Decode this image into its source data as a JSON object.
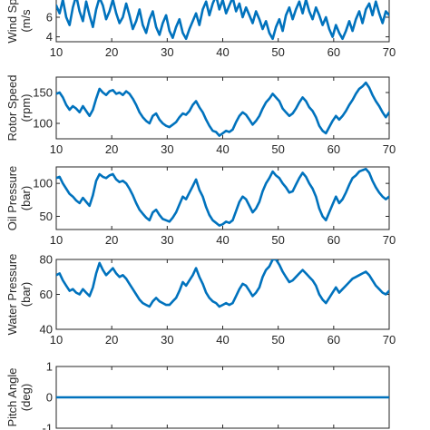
{
  "chart_data": [
    {
      "type": "line",
      "ylabel": "Wind Speed (m/s)",
      "ylabel_lines": [
        "Wind Sp",
        "(m/s"
      ],
      "xlim": [
        10,
        70
      ],
      "ylim": [
        3.5,
        8.5
      ],
      "xticks": [
        10,
        20,
        30,
        40,
        50,
        60,
        70
      ],
      "yticks": [
        4,
        6
      ],
      "series": [
        {
          "color": "#0072BD",
          "x": [
            10.0,
            10.6,
            11.2,
            11.8,
            12.4,
            13.0,
            13.6,
            14.2,
            14.8,
            15.4,
            16.0,
            16.6,
            17.2,
            17.8,
            18.4,
            19.0,
            19.6,
            20.2,
            20.8,
            21.4,
            22.0,
            22.6,
            23.2,
            23.8,
            24.4,
            25.0,
            25.6,
            26.2,
            26.8,
            27.4,
            28.0,
            28.6,
            29.2,
            29.8,
            30.4,
            31.0,
            31.6,
            32.2,
            32.8,
            33.4,
            34.0,
            34.6,
            35.2,
            35.8,
            36.4,
            37.0,
            37.6,
            38.2,
            38.8,
            39.4,
            40.0,
            40.6,
            41.2,
            41.8,
            42.4,
            43.0,
            43.6,
            44.2,
            44.8,
            45.4,
            46.0,
            46.6,
            47.2,
            47.8,
            48.4,
            49.0,
            49.6,
            50.2,
            50.8,
            51.4,
            52.0,
            52.6,
            53.2,
            53.8,
            54.4,
            55.0,
            55.6,
            56.2,
            56.8,
            57.4,
            58.0,
            58.6,
            59.2,
            59.8,
            60.4,
            61.0,
            61.6,
            62.2,
            62.8,
            63.4,
            64.0,
            64.6,
            65.2,
            65.8,
            66.4,
            67.0,
            67.6,
            68.2,
            68.8,
            69.4,
            70.0
          ],
          "y": [
            7.2,
            6.4,
            7.8,
            6.0,
            5.2,
            7.0,
            8.2,
            6.6,
            5.6,
            7.6,
            6.2,
            5.0,
            6.8,
            8.0,
            7.2,
            5.8,
            6.6,
            7.8,
            6.4,
            5.4,
            6.0,
            7.4,
            6.2,
            4.8,
            5.6,
            6.8,
            5.2,
            4.4,
            5.8,
            6.6,
            5.0,
            4.2,
            5.4,
            6.2,
            4.6,
            3.9,
            5.0,
            5.8,
            4.4,
            3.8,
            4.8,
            5.6,
            6.4,
            5.2,
            6.8,
            7.6,
            6.2,
            7.4,
            8.2,
            6.8,
            7.8,
            6.4,
            7.2,
            8.0,
            6.6,
            7.4,
            6.0,
            7.0,
            6.2,
            5.4,
            6.6,
            5.8,
            4.8,
            5.6,
            4.4,
            3.8,
            5.0,
            5.8,
            4.6,
            6.2,
            7.0,
            5.8,
            6.8,
            7.6,
            6.4,
            7.8,
            6.6,
            5.8,
            7.0,
            6.2,
            5.2,
            6.0,
            4.8,
            4.0,
            5.2,
            4.4,
            3.8,
            4.6,
            5.6,
            4.6,
            5.8,
            6.6,
            5.4,
            6.8,
            7.4,
            6.2,
            7.6,
            6.4,
            5.4,
            6.6,
            6.2
          ]
        }
      ]
    },
    {
      "type": "line",
      "ylabel": "Rotor Speed (rpm)",
      "ylabel_lines": [
        "Rotor Speed",
        "(rpm)"
      ],
      "xlim": [
        10,
        70
      ],
      "ylim": [
        75,
        175
      ],
      "xticks": [
        10,
        20,
        30,
        40,
        50,
        60,
        70
      ],
      "yticks": [
        100,
        150
      ],
      "series": [
        {
          "color": "#0072BD",
          "x": [
            10.0,
            10.6,
            11.2,
            11.8,
            12.4,
            13.0,
            13.6,
            14.2,
            14.8,
            15.4,
            16.0,
            16.6,
            17.2,
            17.8,
            18.4,
            19.0,
            19.6,
            20.2,
            20.8,
            21.4,
            22.0,
            22.6,
            23.2,
            23.8,
            24.4,
            25.0,
            25.6,
            26.2,
            26.8,
            27.4,
            28.0,
            28.6,
            29.2,
            29.8,
            30.4,
            31.0,
            31.6,
            32.2,
            32.8,
            33.4,
            34.0,
            34.6,
            35.2,
            35.8,
            36.4,
            37.0,
            37.6,
            38.2,
            38.8,
            39.4,
            40.0,
            40.6,
            41.2,
            41.8,
            42.4,
            43.0,
            43.6,
            44.2,
            44.8,
            45.4,
            46.0,
            46.6,
            47.2,
            47.8,
            48.4,
            49.0,
            49.6,
            50.2,
            50.8,
            51.4,
            52.0,
            52.6,
            53.2,
            53.8,
            54.4,
            55.0,
            55.6,
            56.2,
            56.8,
            57.4,
            58.0,
            58.6,
            59.2,
            59.8,
            60.4,
            61.0,
            61.6,
            62.2,
            62.8,
            63.4,
            64.0,
            64.6,
            65.2,
            65.8,
            66.4,
            67.0,
            67.6,
            68.2,
            68.8,
            69.4,
            70.0
          ],
          "y": [
            148,
            150,
            142,
            130,
            122,
            128,
            124,
            118,
            128,
            120,
            112,
            122,
            140,
            156,
            150,
            146,
            152,
            154,
            148,
            150,
            146,
            152,
            148,
            140,
            130,
            118,
            110,
            104,
            100,
            112,
            116,
            106,
            100,
            96,
            94,
            98,
            102,
            110,
            116,
            114,
            120,
            130,
            136,
            126,
            118,
            106,
            96,
            88,
            86,
            80,
            84,
            88,
            86,
            90,
            102,
            112,
            118,
            114,
            106,
            98,
            104,
            112,
            124,
            134,
            140,
            148,
            142,
            136,
            124,
            118,
            112,
            116,
            124,
            134,
            142,
            136,
            126,
            120,
            110,
            96,
            88,
            84,
            94,
            104,
            112,
            106,
            112,
            120,
            130,
            138,
            148,
            156,
            160,
            166,
            158,
            146,
            136,
            128,
            118,
            110,
            118
          ]
        }
      ]
    },
    {
      "type": "line",
      "ylabel": "Oil Pressure (bar)",
      "ylabel_lines": [
        "Oil Pressure",
        "(bar)"
      ],
      "xlim": [
        10,
        70
      ],
      "ylim": [
        30,
        125
      ],
      "xticks": [
        10,
        20,
        30,
        40,
        50,
        60,
        70
      ],
      "yticks": [
        50,
        100
      ],
      "series": [
        {
          "color": "#0072BD",
          "x": [
            10.0,
            10.6,
            11.2,
            11.8,
            12.4,
            13.0,
            13.6,
            14.2,
            14.8,
            15.4,
            16.0,
            16.6,
            17.2,
            17.8,
            18.4,
            19.0,
            19.6,
            20.2,
            20.8,
            21.4,
            22.0,
            22.6,
            23.2,
            23.8,
            24.4,
            25.0,
            25.6,
            26.2,
            26.8,
            27.4,
            28.0,
            28.6,
            29.2,
            29.8,
            30.4,
            31.0,
            31.6,
            32.2,
            32.8,
            33.4,
            34.0,
            34.6,
            35.2,
            35.8,
            36.4,
            37.0,
            37.6,
            38.2,
            38.8,
            39.4,
            40.0,
            40.6,
            41.2,
            41.8,
            42.4,
            43.0,
            43.6,
            44.2,
            44.8,
            45.4,
            46.0,
            46.6,
            47.2,
            47.8,
            48.4,
            49.0,
            49.6,
            50.2,
            50.8,
            51.4,
            52.0,
            52.6,
            53.2,
            53.8,
            54.4,
            55.0,
            55.6,
            56.2,
            56.8,
            57.4,
            58.0,
            58.6,
            59.2,
            59.8,
            60.4,
            61.0,
            61.6,
            62.2,
            62.8,
            63.4,
            64.0,
            64.6,
            65.2,
            65.8,
            66.4,
            67.0,
            67.6,
            68.2,
            68.8,
            69.4,
            70.0
          ],
          "y": [
            108,
            110,
            100,
            92,
            84,
            80,
            74,
            70,
            78,
            72,
            66,
            82,
            104,
            114,
            110,
            108,
            112,
            114,
            106,
            102,
            104,
            100,
            92,
            82,
            70,
            60,
            54,
            48,
            44,
            56,
            60,
            52,
            46,
            44,
            42,
            48,
            56,
            68,
            80,
            76,
            86,
            96,
            106,
            90,
            80,
            64,
            52,
            44,
            40,
            36,
            38,
            42,
            40,
            44,
            58,
            72,
            80,
            76,
            66,
            56,
            62,
            72,
            88,
            100,
            108,
            118,
            112,
            108,
            100,
            94,
            86,
            88,
            98,
            108,
            116,
            110,
            100,
            92,
            80,
            62,
            50,
            44,
            56,
            68,
            80,
            70,
            76,
            86,
            98,
            108,
            112,
            118,
            120,
            122,
            116,
            104,
            94,
            86,
            80,
            76,
            80
          ]
        }
      ]
    },
    {
      "type": "line",
      "ylabel": "Water Pressure (bar)",
      "ylabel_lines": [
        "Water Pressure",
        "(bar)"
      ],
      "xlim": [
        10,
        70
      ],
      "ylim": [
        40,
        80
      ],
      "xticks": [
        10,
        20,
        30,
        40,
        50,
        60,
        70
      ],
      "yticks": [
        40,
        60,
        80
      ],
      "series": [
        {
          "color": "#0072BD",
          "x": [
            10.0,
            10.6,
            11.2,
            11.8,
            12.4,
            13.0,
            13.6,
            14.2,
            14.8,
            15.4,
            16.0,
            16.6,
            17.2,
            17.8,
            18.4,
            19.0,
            19.6,
            20.2,
            20.8,
            21.4,
            22.0,
            22.6,
            23.2,
            23.8,
            24.4,
            25.0,
            25.6,
            26.2,
            26.8,
            27.4,
            28.0,
            28.6,
            29.2,
            29.8,
            30.4,
            31.0,
            31.6,
            32.2,
            32.8,
            33.4,
            34.0,
            34.6,
            35.2,
            35.8,
            36.4,
            37.0,
            37.6,
            38.2,
            38.8,
            39.4,
            40.0,
            40.6,
            41.2,
            41.8,
            42.4,
            43.0,
            43.6,
            44.2,
            44.8,
            45.4,
            46.0,
            46.6,
            47.2,
            47.8,
            48.4,
            49.0,
            49.6,
            50.2,
            50.8,
            51.4,
            52.0,
            52.6,
            53.2,
            53.8,
            54.4,
            55.0,
            55.6,
            56.2,
            56.8,
            57.4,
            58.0,
            58.6,
            59.2,
            59.8,
            60.4,
            61.0,
            61.6,
            62.2,
            62.8,
            63.4,
            64.0,
            64.6,
            65.2,
            65.8,
            66.4,
            67.0,
            67.6,
            68.2,
            68.8,
            69.4,
            70.0
          ],
          "y": [
            71,
            72,
            68,
            65,
            62,
            63,
            61,
            60,
            63,
            61,
            59,
            64,
            72,
            78,
            74,
            71,
            73,
            75,
            72,
            70,
            71,
            69,
            66,
            63,
            60,
            57,
            55,
            54,
            53,
            56,
            58,
            56,
            55,
            54,
            54,
            56,
            58,
            62,
            67,
            65,
            68,
            71,
            75,
            70,
            66,
            61,
            58,
            56,
            55,
            53,
            54,
            55,
            54,
            55,
            59,
            63,
            66,
            65,
            62,
            59,
            61,
            64,
            70,
            74,
            76,
            80,
            80,
            77,
            73,
            70,
            67,
            68,
            70,
            72,
            74,
            72,
            70,
            68,
            65,
            60,
            57,
            55,
            58,
            61,
            64,
            61,
            63,
            65,
            67,
            69,
            70,
            71,
            72,
            73,
            71,
            68,
            65,
            63,
            61,
            60,
            62
          ]
        }
      ]
    },
    {
      "type": "line",
      "ylabel": "Pitch Angle (deg)",
      "ylabel_lines": [
        "Pitch Angle",
        "(deg)"
      ],
      "xlim": [
        10,
        70
      ],
      "ylim": [
        -1,
        1
      ],
      "xticks": [
        10,
        20,
        30,
        40,
        50,
        60,
        70
      ],
      "yticks": [
        -1,
        0,
        1
      ],
      "series": [
        {
          "color": "#0072BD",
          "x": [
            10,
            70
          ],
          "y": [
            0,
            0
          ]
        }
      ]
    }
  ],
  "tick_labels": {
    "x": [
      "10",
      "20",
      "30",
      "40",
      "50",
      "60",
      "70"
    ],
    "panel_0_y": [
      "4",
      "6"
    ],
    "panel_1_y": [
      "100",
      "150"
    ],
    "panel_2_y": [
      "50",
      "100"
    ],
    "panel_3_y": [
      "40",
      "60",
      "80"
    ],
    "panel_4_y": [
      "-1",
      "0",
      "1"
    ]
  }
}
